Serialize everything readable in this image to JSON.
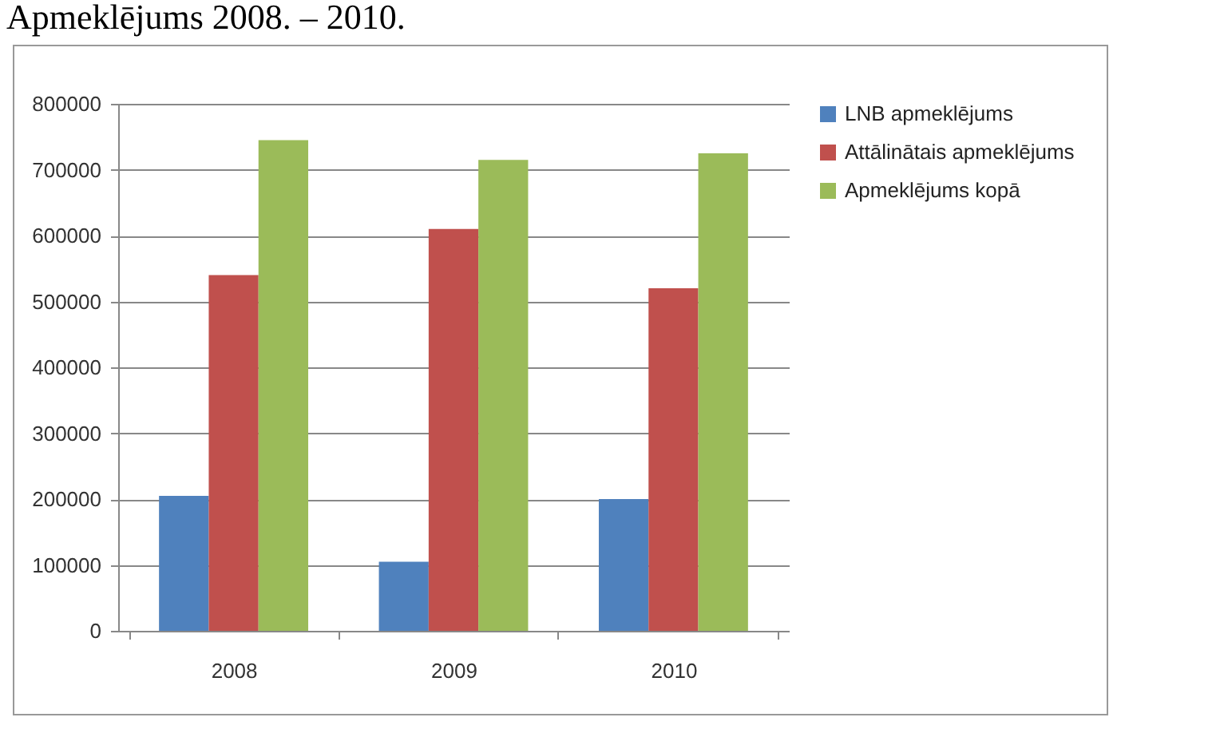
{
  "chart_data": {
    "type": "bar",
    "title": "Apmeklējums 2008. – 2010.",
    "categories": [
      "2008",
      "2009",
      "2010"
    ],
    "series": [
      {
        "name": "LNB apmeklējums",
        "color": "#4f81bd",
        "values": [
          205000,
          105000,
          200000
        ]
      },
      {
        "name": "Attālinātais apmeklējums",
        "color": "#c0504d",
        "values": [
          540000,
          610000,
          520000
        ]
      },
      {
        "name": "Apmeklējums kopā",
        "color": "#9bbb59",
        "values": [
          745000,
          715000,
          725000
        ]
      }
    ],
    "ylim": [
      0,
      800000
    ],
    "yticks": [
      0,
      100000,
      200000,
      300000,
      400000,
      500000,
      600000,
      700000,
      800000
    ],
    "grid": "y",
    "legend": "right"
  }
}
